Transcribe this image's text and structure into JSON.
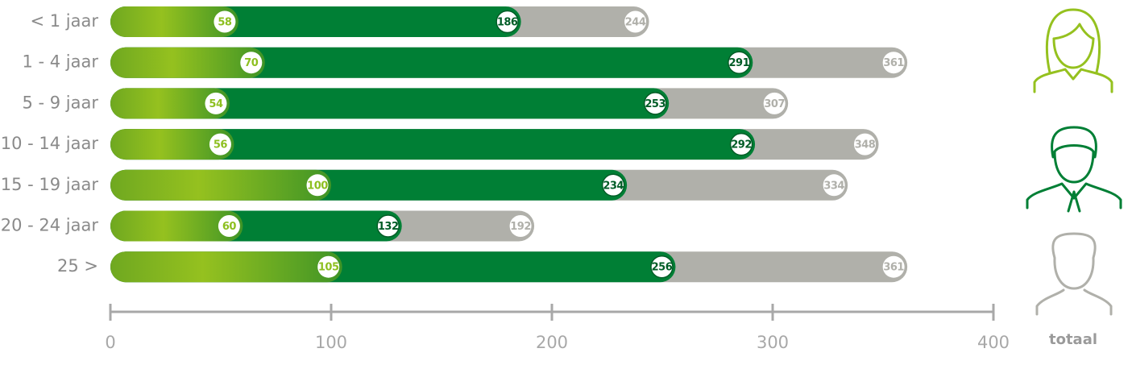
{
  "chart_data": {
    "type": "bar",
    "orientation": "horizontal",
    "categories": [
      "< 1 jaar",
      "1 - 4 jaar",
      "5 - 9 jaar",
      "10 - 14 jaar",
      "15 - 19 jaar",
      "20 - 24 jaar",
      "25 >"
    ],
    "series": [
      {
        "color": "#8dbf1f",
        "values": [
          58,
          70,
          54,
          56,
          100,
          60,
          105
        ]
      },
      {
        "color": "#007f35",
        "values": [
          186,
          291,
          253,
          292,
          234,
          132,
          256
        ]
      },
      {
        "name": "totaal",
        "color": "#b0b0aa",
        "values": [
          244,
          361,
          307,
          348,
          334,
          192,
          361
        ]
      }
    ],
    "xlim": [
      0,
      400
    ],
    "xticks": [
      0,
      100,
      200,
      300,
      400
    ]
  }
}
